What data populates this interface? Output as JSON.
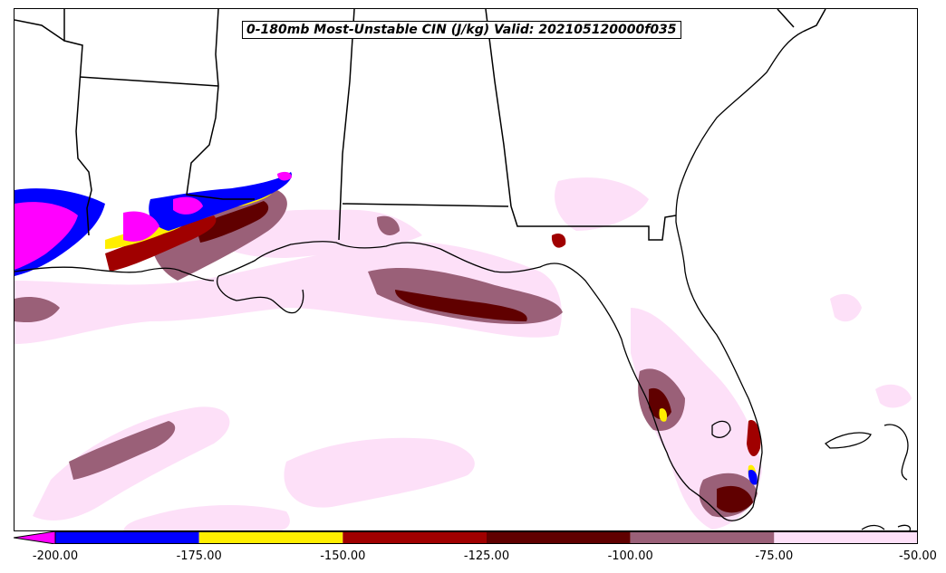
{
  "title": "0-180mb Most-Unstable CIN (J/kg) Valid: 202105120000f035",
  "colorbar": {
    "extend_color": "#ff00ff",
    "segments": [
      {
        "from": -200,
        "to": -175,
        "color": "#0000ff"
      },
      {
        "from": -175,
        "to": -150,
        "color": "#ffee00"
      },
      {
        "from": -150,
        "to": -125,
        "color": "#a00000"
      },
      {
        "from": -125,
        "to": -100,
        "color": "#600000"
      },
      {
        "from": -100,
        "to": -75,
        "color": "#9a6078"
      },
      {
        "from": -75,
        "to": -50,
        "color": "#fde0f8"
      }
    ],
    "tick_labels": [
      "-200.00",
      "-175.00",
      "-150.00",
      "-125.00",
      "-100.00",
      "-75.00",
      "-50.00"
    ]
  },
  "colors": {
    "coastline": "#000000",
    "light_pink": "#fde0f8",
    "mauve": "#9a6078",
    "dark_red": "#600000",
    "red": "#a00000",
    "yellow": "#ffee00",
    "blue": "#0000ff",
    "magenta": "#ff00ff"
  }
}
